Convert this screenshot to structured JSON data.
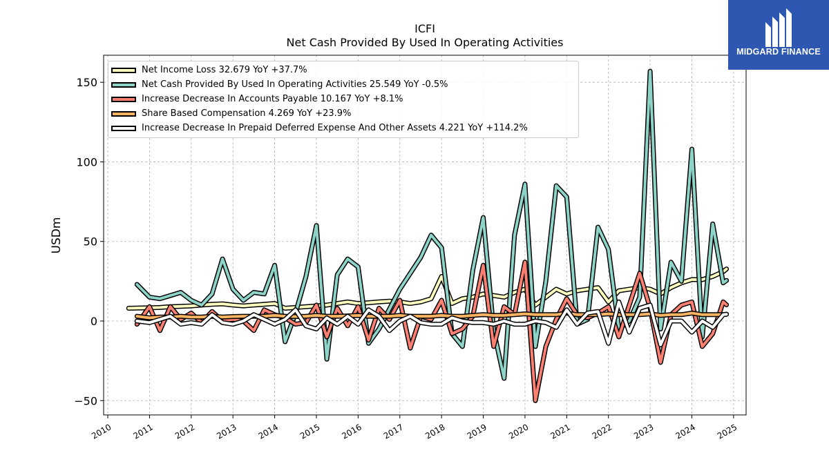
{
  "title": "ICFI",
  "subtitle": "Net Cash Provided By Used In Operating Activities",
  "logo": {
    "text": "MIDGARD FINANCE",
    "bg_color": "#2d57b1"
  },
  "chart_data": {
    "type": "line",
    "ylabel": "USDm",
    "xlabel": "",
    "xlim": [
      2009.9,
      2025.3
    ],
    "ylim": [
      -59,
      167
    ],
    "yticks": [
      -50,
      0,
      50,
      100,
      150
    ],
    "ytick_labels": [
      "−50",
      "0",
      "50",
      "100",
      "150"
    ],
    "xticks": [
      2010,
      2011,
      2012,
      2013,
      2014,
      2015,
      2016,
      2017,
      2018,
      2019,
      2020,
      2021,
      2022,
      2023,
      2024,
      2025
    ],
    "grid": true,
    "legend_position": "top-left",
    "series": [
      {
        "name": "Net Income Loss",
        "legend_label": "Net Income Loss  32.679 YoY +37.7%",
        "color": "#ffffbf",
        "points": [
          [
            2010.5,
            8
          ],
          [
            2010.75,
            8.2
          ],
          [
            2011.0,
            8.3
          ],
          [
            2011.25,
            8.5
          ],
          [
            2011.5,
            9
          ],
          [
            2011.75,
            9.2
          ],
          [
            2012.0,
            9.5
          ],
          [
            2012.25,
            10
          ],
          [
            2012.5,
            10.5
          ],
          [
            2012.75,
            10.8
          ],
          [
            2013.0,
            10
          ],
          [
            2013.25,
            9.5
          ],
          [
            2013.5,
            10
          ],
          [
            2013.75,
            10.5
          ],
          [
            2014.0,
            11
          ],
          [
            2014.25,
            8
          ],
          [
            2014.5,
            8.5
          ],
          [
            2014.75,
            9
          ],
          [
            2015.0,
            9.5
          ],
          [
            2015.25,
            10
          ],
          [
            2015.5,
            11
          ],
          [
            2015.75,
            12
          ],
          [
            2016.0,
            11
          ],
          [
            2016.25,
            11.5
          ],
          [
            2016.5,
            12
          ],
          [
            2016.75,
            12.5
          ],
          [
            2017.0,
            12
          ],
          [
            2017.25,
            11
          ],
          [
            2017.5,
            12
          ],
          [
            2017.75,
            14
          ],
          [
            2018.0,
            28
          ],
          [
            2018.25,
            11
          ],
          [
            2018.5,
            14
          ],
          [
            2018.75,
            15
          ],
          [
            2019.0,
            17
          ],
          [
            2019.25,
            16
          ],
          [
            2019.5,
            15
          ],
          [
            2019.75,
            18
          ],
          [
            2020.0,
            20
          ],
          [
            2020.25,
            10
          ],
          [
            2020.5,
            15
          ],
          [
            2020.75,
            20
          ],
          [
            2021.0,
            17
          ],
          [
            2021.25,
            19
          ],
          [
            2021.5,
            20
          ],
          [
            2021.75,
            21
          ],
          [
            2022.0,
            12
          ],
          [
            2022.25,
            19
          ],
          [
            2022.5,
            20
          ],
          [
            2022.75,
            21
          ],
          [
            2023.0,
            20
          ],
          [
            2023.25,
            17
          ],
          [
            2023.5,
            21
          ],
          [
            2023.75,
            24
          ],
          [
            2024.0,
            26
          ],
          [
            2024.25,
            26
          ],
          [
            2024.5,
            28
          ],
          [
            2024.75,
            31
          ],
          [
            2024.83,
            32.7
          ]
        ]
      },
      {
        "name": "Net Cash Provided By Used In Operating Activities",
        "legend_label": "Net Cash Provided By Used In Operating Activities  25.549 YoY -0.5%",
        "color": "#8dd3c7",
        "points": [
          [
            2010.7,
            23
          ],
          [
            2011.0,
            15
          ],
          [
            2011.25,
            14
          ],
          [
            2011.5,
            16
          ],
          [
            2011.75,
            18
          ],
          [
            2012.0,
            13
          ],
          [
            2012.25,
            10
          ],
          [
            2012.5,
            17
          ],
          [
            2012.75,
            39
          ],
          [
            2013.0,
            20
          ],
          [
            2013.25,
            13
          ],
          [
            2013.5,
            18
          ],
          [
            2013.75,
            17
          ],
          [
            2014.0,
            35
          ],
          [
            2014.25,
            -13
          ],
          [
            2014.5,
            5
          ],
          [
            2014.75,
            28
          ],
          [
            2015.0,
            60
          ],
          [
            2015.25,
            -24
          ],
          [
            2015.5,
            29
          ],
          [
            2015.75,
            39
          ],
          [
            2016.0,
            34
          ],
          [
            2016.25,
            -14
          ],
          [
            2016.5,
            -5
          ],
          [
            2017.0,
            20
          ],
          [
            2017.5,
            40
          ],
          [
            2017.75,
            54
          ],
          [
            2018.0,
            46
          ],
          [
            2018.25,
            -8
          ],
          [
            2018.5,
            -16
          ],
          [
            2018.75,
            32
          ],
          [
            2019.0,
            65
          ],
          [
            2019.25,
            -6
          ],
          [
            2019.5,
            -36
          ],
          [
            2019.75,
            54
          ],
          [
            2020.0,
            86
          ],
          [
            2020.25,
            -16
          ],
          [
            2020.5,
            25
          ],
          [
            2020.75,
            85
          ],
          [
            2021.0,
            78
          ],
          [
            2021.25,
            -2
          ],
          [
            2021.5,
            1
          ],
          [
            2021.75,
            59
          ],
          [
            2022.0,
            45
          ],
          [
            2022.25,
            -5
          ],
          [
            2022.5,
            0
          ],
          [
            2022.75,
            15
          ],
          [
            2023.0,
            157
          ],
          [
            2023.25,
            -5
          ],
          [
            2023.5,
            37
          ],
          [
            2023.75,
            25
          ],
          [
            2024.0,
            108
          ],
          [
            2024.25,
            -10
          ],
          [
            2024.5,
            61
          ],
          [
            2024.75,
            24
          ],
          [
            2024.83,
            25.5
          ]
        ]
      },
      {
        "name": "Increase Decrease In Accounts Payable",
        "legend_label": "Increase Decrease In Accounts Payable  10.167 YoY +8.1%",
        "color": "#fb8072",
        "points": [
          [
            2010.7,
            -2
          ],
          [
            2011.0,
            9
          ],
          [
            2011.25,
            -6
          ],
          [
            2011.5,
            9
          ],
          [
            2011.75,
            1
          ],
          [
            2012.0,
            5
          ],
          [
            2012.25,
            -1
          ],
          [
            2012.5,
            6
          ],
          [
            2012.75,
            0
          ],
          [
            2013.0,
            1
          ],
          [
            2013.25,
            0
          ],
          [
            2013.5,
            -6
          ],
          [
            2013.75,
            7
          ],
          [
            2014.0,
            4
          ],
          [
            2014.25,
            2
          ],
          [
            2014.5,
            -2
          ],
          [
            2014.75,
            -1
          ],
          [
            2015.0,
            10
          ],
          [
            2015.25,
            -10
          ],
          [
            2015.5,
            8
          ],
          [
            2015.75,
            -3
          ],
          [
            2016.0,
            9
          ],
          [
            2016.25,
            -12
          ],
          [
            2016.5,
            8
          ],
          [
            2016.75,
            1
          ],
          [
            2017.0,
            13
          ],
          [
            2017.25,
            -17
          ],
          [
            2017.5,
            3
          ],
          [
            2017.75,
            1
          ],
          [
            2018.0,
            13
          ],
          [
            2018.25,
            -8
          ],
          [
            2018.5,
            -5
          ],
          [
            2018.75,
            3
          ],
          [
            2019.0,
            35
          ],
          [
            2019.25,
            -16
          ],
          [
            2019.5,
            9
          ],
          [
            2019.75,
            4
          ],
          [
            2020.0,
            37
          ],
          [
            2020.25,
            -50
          ],
          [
            2020.5,
            -16
          ],
          [
            2020.75,
            1
          ],
          [
            2021.0,
            14
          ],
          [
            2021.25,
            4
          ],
          [
            2021.5,
            2
          ],
          [
            2021.75,
            5
          ],
          [
            2022.0,
            9
          ],
          [
            2022.25,
            -10
          ],
          [
            2022.5,
            10
          ],
          [
            2022.75,
            30
          ],
          [
            2023.0,
            8
          ],
          [
            2023.25,
            -26
          ],
          [
            2023.5,
            4
          ],
          [
            2023.75,
            10
          ],
          [
            2024.0,
            12
          ],
          [
            2024.25,
            -16
          ],
          [
            2024.5,
            -8
          ],
          [
            2024.75,
            12
          ],
          [
            2024.83,
            10.2
          ]
        ]
      },
      {
        "name": "Share Based Compensation",
        "legend_label": "Share Based Compensation  4.269 YoY +23.9%",
        "color": "#fdb462",
        "points": [
          [
            2010.7,
            3
          ],
          [
            2011.0,
            2
          ],
          [
            2011.25,
            2.5
          ],
          [
            2011.5,
            2.5
          ],
          [
            2011.75,
            3
          ],
          [
            2012.0,
            2.5
          ],
          [
            2012.25,
            2.5
          ],
          [
            2012.5,
            3
          ],
          [
            2012.75,
            2.5
          ],
          [
            2013.0,
            2.8
          ],
          [
            2013.25,
            3
          ],
          [
            2013.5,
            3
          ],
          [
            2013.75,
            3
          ],
          [
            2014.0,
            3.5
          ],
          [
            2014.25,
            3
          ],
          [
            2014.5,
            2.8
          ],
          [
            2014.75,
            3
          ],
          [
            2015.0,
            3.5
          ],
          [
            2015.25,
            3
          ],
          [
            2015.5,
            3
          ],
          [
            2015.75,
            3.2
          ],
          [
            2016.0,
            3.5
          ],
          [
            2016.25,
            3
          ],
          [
            2016.5,
            3
          ],
          [
            2016.75,
            3
          ],
          [
            2017.0,
            3.5
          ],
          [
            2017.25,
            3
          ],
          [
            2017.5,
            3
          ],
          [
            2017.75,
            3
          ],
          [
            2018.0,
            3.5
          ],
          [
            2018.25,
            3
          ],
          [
            2018.5,
            3
          ],
          [
            2018.75,
            3.5
          ],
          [
            2019.0,
            4
          ],
          [
            2019.25,
            3.5
          ],
          [
            2019.5,
            3.5
          ],
          [
            2019.75,
            4
          ],
          [
            2020.0,
            4.5
          ],
          [
            2020.25,
            4
          ],
          [
            2020.5,
            4
          ],
          [
            2020.75,
            4
          ],
          [
            2021.0,
            5
          ],
          [
            2021.25,
            4
          ],
          [
            2021.5,
            4
          ],
          [
            2021.75,
            4
          ],
          [
            2022.0,
            4.5
          ],
          [
            2022.25,
            4
          ],
          [
            2022.5,
            4
          ],
          [
            2022.75,
            4
          ],
          [
            2023.0,
            4.5
          ],
          [
            2023.25,
            3.5
          ],
          [
            2023.5,
            4
          ],
          [
            2023.75,
            4
          ],
          [
            2024.0,
            5
          ],
          [
            2024.25,
            4
          ],
          [
            2024.5,
            4
          ],
          [
            2024.75,
            4
          ],
          [
            2024.83,
            4.3
          ]
        ]
      },
      {
        "name": "Increase Decrease In Prepaid Deferred Expense And Other Assets",
        "legend_label": "Increase Decrease In Prepaid Deferred Expense And Other Assets  4.221 YoY +114.2%",
        "color": "#ffffff",
        "points": [
          [
            2010.7,
            0
          ],
          [
            2011.0,
            -1
          ],
          [
            2011.25,
            1
          ],
          [
            2011.5,
            3
          ],
          [
            2011.75,
            -2
          ],
          [
            2012.0,
            -1
          ],
          [
            2012.25,
            -2
          ],
          [
            2012.5,
            4
          ],
          [
            2012.75,
            -1
          ],
          [
            2013.0,
            -2
          ],
          [
            2013.25,
            0
          ],
          [
            2013.5,
            4
          ],
          [
            2013.75,
            1
          ],
          [
            2014.0,
            -2
          ],
          [
            2014.25,
            1
          ],
          [
            2014.5,
            7
          ],
          [
            2014.75,
            -3
          ],
          [
            2015.0,
            -5
          ],
          [
            2015.25,
            2
          ],
          [
            2015.5,
            -2
          ],
          [
            2015.75,
            3
          ],
          [
            2016.0,
            -2
          ],
          [
            2016.25,
            7
          ],
          [
            2016.5,
            3
          ],
          [
            2016.75,
            -6
          ],
          [
            2017.0,
            0
          ],
          [
            2017.25,
            3
          ],
          [
            2017.5,
            -1
          ],
          [
            2017.75,
            -2
          ],
          [
            2018.0,
            -2
          ],
          [
            2018.25,
            2
          ],
          [
            2018.5,
            0
          ],
          [
            2018.75,
            -1
          ],
          [
            2019.0,
            -1
          ],
          [
            2019.25,
            -2
          ],
          [
            2019.5,
            0
          ],
          [
            2019.75,
            -2
          ],
          [
            2020.0,
            -2
          ],
          [
            2020.25,
            0
          ],
          [
            2020.5,
            -1
          ],
          [
            2020.75,
            -4
          ],
          [
            2021.0,
            7
          ],
          [
            2021.25,
            -2
          ],
          [
            2021.5,
            5
          ],
          [
            2021.75,
            6
          ],
          [
            2022.0,
            -14
          ],
          [
            2022.25,
            12
          ],
          [
            2022.5,
            -7
          ],
          [
            2022.75,
            8
          ],
          [
            2023.0,
            10
          ],
          [
            2023.25,
            -15
          ],
          [
            2023.5,
            0
          ],
          [
            2023.75,
            0
          ],
          [
            2024.0,
            -7
          ],
          [
            2024.25,
            0
          ],
          [
            2024.5,
            -4
          ],
          [
            2024.75,
            4
          ],
          [
            2024.83,
            4.2
          ]
        ]
      }
    ]
  }
}
